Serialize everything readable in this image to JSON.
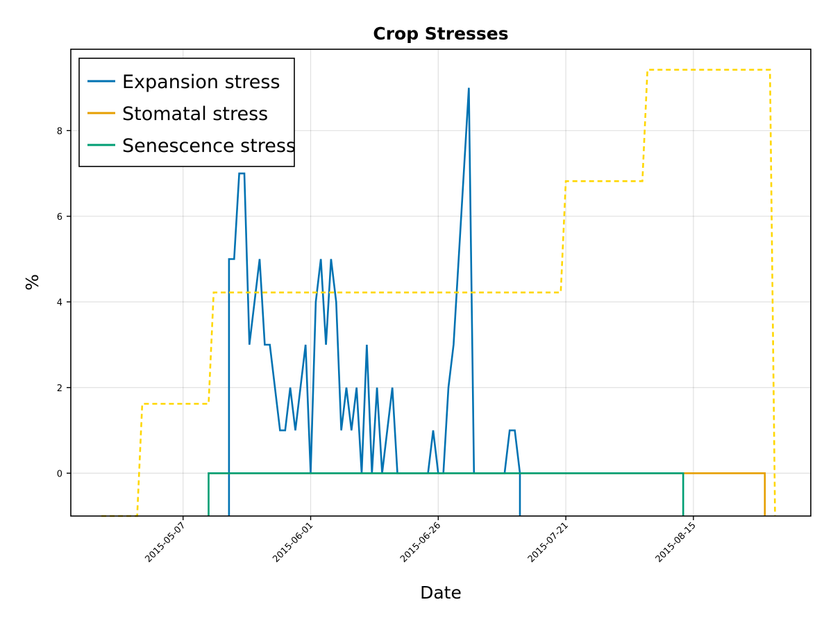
{
  "chart_data": {
    "type": "line",
    "title": "Crop Stresses",
    "xlabel": "Date",
    "ylabel": "%",
    "x_is_date": true,
    "xlim": [
      "2015-04-15",
      "2015-09-07"
    ],
    "ylim": [
      -1,
      9.9
    ],
    "x_ticks": [
      "2015-05-07",
      "2015-06-01",
      "2015-06-26",
      "2015-07-21",
      "2015-08-15"
    ],
    "y_ticks": [
      0,
      2,
      4,
      6,
      8
    ],
    "grid": true,
    "legend_position": "top-left",
    "series": [
      {
        "name": "Expansion stress",
        "color": "#0072b2",
        "style": "solid",
        "points": [
          [
            "2015-05-16",
            -1
          ],
          [
            "2015-05-16",
            5
          ],
          [
            "2015-05-17",
            5
          ],
          [
            "2015-05-18",
            7
          ],
          [
            "2015-05-19",
            7
          ],
          [
            "2015-05-20",
            3
          ],
          [
            "2015-05-22",
            5
          ],
          [
            "2015-05-23",
            3
          ],
          [
            "2015-05-24",
            3
          ],
          [
            "2015-05-26",
            1
          ],
          [
            "2015-05-27",
            1
          ],
          [
            "2015-05-28",
            2
          ],
          [
            "2015-05-29",
            1
          ],
          [
            "2015-05-31",
            3
          ],
          [
            "2015-06-01",
            0
          ],
          [
            "2015-06-02",
            4
          ],
          [
            "2015-06-03",
            5
          ],
          [
            "2015-06-04",
            3
          ],
          [
            "2015-06-05",
            5
          ],
          [
            "2015-06-06",
            4
          ],
          [
            "2015-06-07",
            1
          ],
          [
            "2015-06-08",
            2
          ],
          [
            "2015-06-09",
            1
          ],
          [
            "2015-06-10",
            2
          ],
          [
            "2015-06-11",
            0
          ],
          [
            "2015-06-12",
            3
          ],
          [
            "2015-06-13",
            0
          ],
          [
            "2015-06-14",
            2
          ],
          [
            "2015-06-15",
            0
          ],
          [
            "2015-06-17",
            2
          ],
          [
            "2015-06-18",
            0
          ],
          [
            "2015-06-24",
            0
          ],
          [
            "2015-06-25",
            1
          ],
          [
            "2015-06-26",
            0
          ],
          [
            "2015-06-27",
            0
          ],
          [
            "2015-06-28",
            2
          ],
          [
            "2015-06-29",
            3
          ],
          [
            "2015-07-02",
            9
          ],
          [
            "2015-07-03",
            0
          ],
          [
            "2015-07-09",
            0
          ],
          [
            "2015-07-10",
            1
          ],
          [
            "2015-07-11",
            1
          ],
          [
            "2015-07-12",
            0
          ],
          [
            "2015-07-12",
            -1
          ]
        ]
      },
      {
        "name": "Stomatal stress",
        "color": "#e69f00",
        "style": "solid",
        "points": [
          [
            "2015-05-12",
            0
          ],
          [
            "2015-08-29",
            0
          ],
          [
            "2015-08-29",
            -1
          ]
        ]
      },
      {
        "name": "Senescence stress",
        "color": "#009e73",
        "style": "solid",
        "points": [
          [
            "2015-05-12",
            -1
          ],
          [
            "2015-05-12",
            0
          ],
          [
            "2015-08-13",
            0
          ],
          [
            "2015-08-13",
            -1
          ]
        ]
      },
      {
        "name": "",
        "color": "#ffd700",
        "style": "dashed",
        "points": [
          [
            "2015-04-21",
            -1
          ],
          [
            "2015-04-28",
            -1
          ],
          [
            "2015-04-29",
            1.62
          ],
          [
            "2015-05-12",
            1.62
          ],
          [
            "2015-05-13",
            4.22
          ],
          [
            "2015-07-20",
            4.22
          ],
          [
            "2015-07-21",
            6.82
          ],
          [
            "2015-08-05",
            6.82
          ],
          [
            "2015-08-06",
            9.42
          ],
          [
            "2015-08-30",
            9.42
          ],
          [
            "2015-08-31",
            -1
          ]
        ]
      }
    ],
    "legend": [
      "Expansion stress",
      "Stomatal stress",
      "Senescence stress"
    ]
  }
}
